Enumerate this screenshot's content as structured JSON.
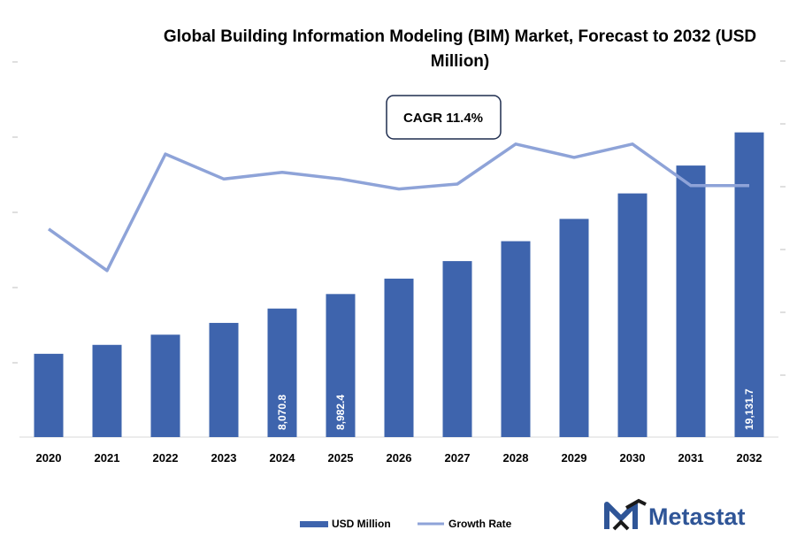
{
  "chart_data": {
    "type": "bar",
    "title_line1": "Global Building Information Modeling (BIM) Market, Forecast to 2032 (USD",
    "title_line2": "Million)",
    "categories": [
      "2020",
      "2021",
      "2022",
      "2023",
      "2024",
      "2025",
      "2026",
      "2027",
      "2028",
      "2029",
      "2030",
      "2031",
      "2032"
    ],
    "series": [
      {
        "name": "USD Million",
        "type": "bar",
        "color": "#3e64ad",
        "values": [
          5230,
          5790,
          6430,
          7170,
          8070.8,
          8982.4,
          9950,
          11050,
          12300,
          13700,
          15300,
          17050,
          19131.7
        ],
        "data_labels": {
          "2024": "8,070.8",
          "2025": "8,982.4",
          "2032": "19,131.7"
        }
      },
      {
        "name": "Growth Rate",
        "type": "line",
        "color": "#8ea3d8",
        "values": [
          8.5,
          6.0,
          13.0,
          11.5,
          11.9,
          11.5,
          10.9,
          11.2,
          13.6,
          12.8,
          13.6,
          11.1,
          11.1
        ]
      }
    ],
    "annotation": "CAGR 11.4%",
    "y_left_ticks": 5,
    "y_right_ticks": 6,
    "ylim_bar": [
      0,
      23000
    ],
    "ylim_line": [
      -4,
      18
    ]
  },
  "legend": {
    "bar_label": "USD Million",
    "line_label": "Growth Rate"
  },
  "logo": {
    "text": "Metastat"
  }
}
